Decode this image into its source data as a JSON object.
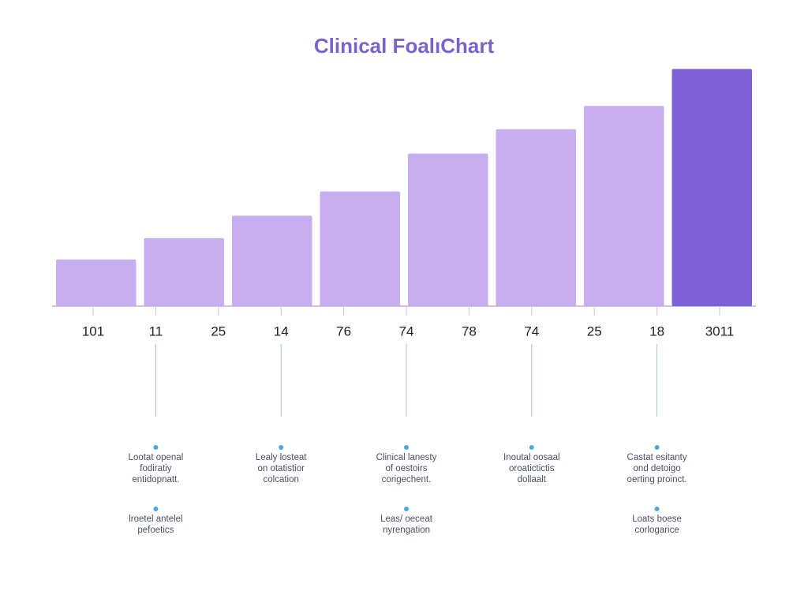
{
  "chart_data": {
    "type": "bar",
    "title": "Clinical FoalıChart",
    "categories": [
      null,
      null,
      null,
      null,
      null,
      null,
      null,
      null
    ],
    "values": [
      48,
      70,
      93,
      118,
      157,
      182,
      206,
      244
    ],
    "colors": [
      "#c6aef0",
      "#c6aef0",
      "#c6aef0",
      "#c6aef0",
      "#c6aef0",
      "#c6aef0",
      "#c6aef0",
      "#7d60d6"
    ],
    "ylim": [
      0,
      250
    ],
    "x_labels": [
      "101",
      "11",
      "25",
      "14",
      "76",
      "74",
      "78",
      "74",
      "25",
      "18",
      "3011"
    ],
    "annotations": [
      {
        "label_index": 1,
        "notes": [
          [
            "Lootat openal",
            "fodiratiy",
            "entidopnatt."
          ],
          [
            "lroetel antelel",
            "pefoetics"
          ]
        ]
      },
      {
        "label_index": 3,
        "notes": [
          [
            "Lealy losteat",
            "on otatistior",
            "colcation"
          ]
        ]
      },
      {
        "label_index": 5,
        "notes": [
          [
            "Clinical lanesty",
            "of oestoirs",
            "corigechent."
          ],
          [
            "Leas/ oeceat",
            "nyrengation"
          ]
        ]
      },
      {
        "label_index": 7,
        "notes": [
          [
            "Inoutal oosaal",
            "oroatictictis",
            "dollaalt"
          ]
        ]
      },
      {
        "label_index": 9,
        "notes": [
          [
            "Castat esitanty",
            "ond detoigo",
            "oerting proinct."
          ],
          [
            "Loats boese",
            "corlogarice"
          ]
        ]
      }
    ]
  }
}
